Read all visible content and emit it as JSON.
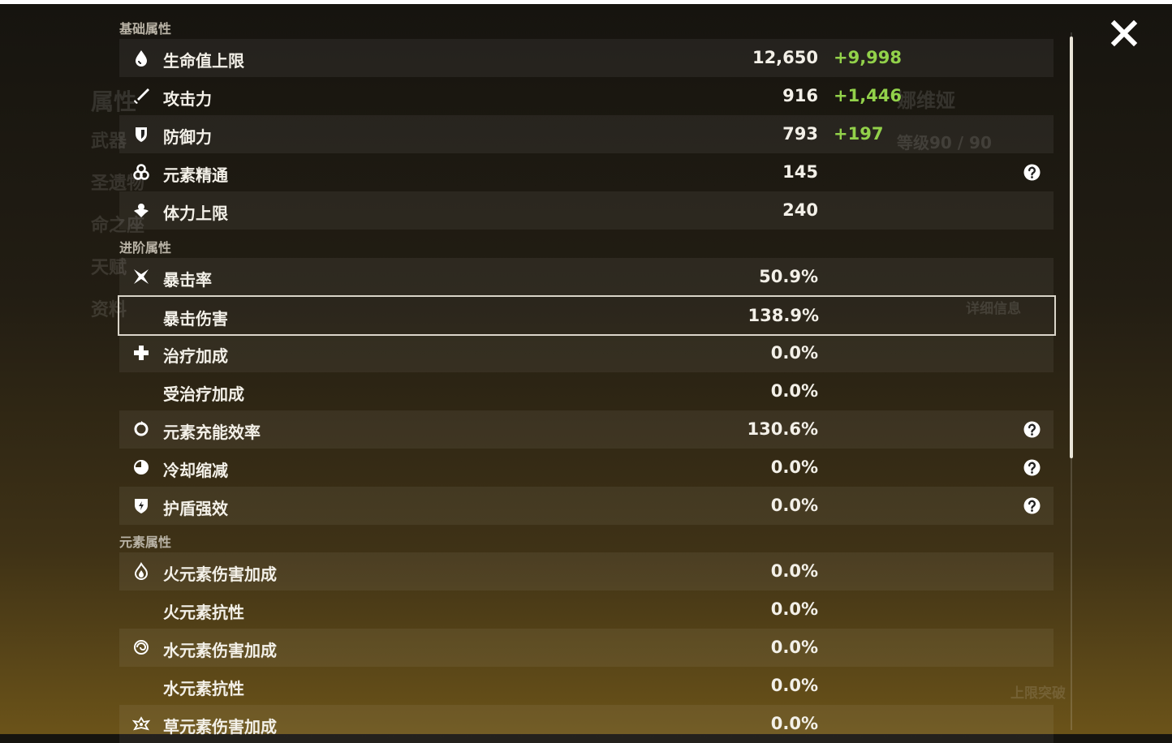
{
  "background": {
    "side_tabs": [
      "属性",
      "武器",
      "圣遗物",
      "命之座",
      "天赋",
      "资料"
    ],
    "character_name": "娜维娅",
    "level": "等级90 / 90",
    "details_button": "详细信息",
    "ascend_button": "上限突破"
  },
  "sections": [
    {
      "title": "基础属性",
      "rows": [
        {
          "label": "生命值上限",
          "value": "12,650",
          "bonus": "+9,998"
        },
        {
          "label": "攻击力",
          "value": "916",
          "bonus": "+1,446"
        },
        {
          "label": "防御力",
          "value": "793",
          "bonus": "+197"
        },
        {
          "label": "元素精通",
          "value": "145",
          "help": true
        },
        {
          "label": "体力上限",
          "value": "240"
        }
      ]
    },
    {
      "title": "进阶属性",
      "rows": [
        {
          "label": "暴击率",
          "value": "50.9%"
        },
        {
          "label": "暴击伤害",
          "value": "138.9%",
          "selected": true
        },
        {
          "label": "治疗加成",
          "value": "0.0%"
        },
        {
          "label": "受治疗加成",
          "value": "0.0%"
        },
        {
          "label": "元素充能效率",
          "value": "130.6%",
          "help": true
        },
        {
          "label": "冷却缩减",
          "value": "0.0%",
          "help": true
        },
        {
          "label": "护盾强效",
          "value": "0.0%",
          "help": true
        }
      ]
    },
    {
      "title": "元素属性",
      "rows": [
        {
          "label": "火元素伤害加成",
          "value": "0.0%"
        },
        {
          "label": "火元素抗性",
          "value": "0.0%"
        },
        {
          "label": "水元素伤害加成",
          "value": "0.0%"
        },
        {
          "label": "水元素抗性",
          "value": "0.0%"
        },
        {
          "label": "草元素伤害加成",
          "value": "0.0%"
        }
      ]
    }
  ]
}
